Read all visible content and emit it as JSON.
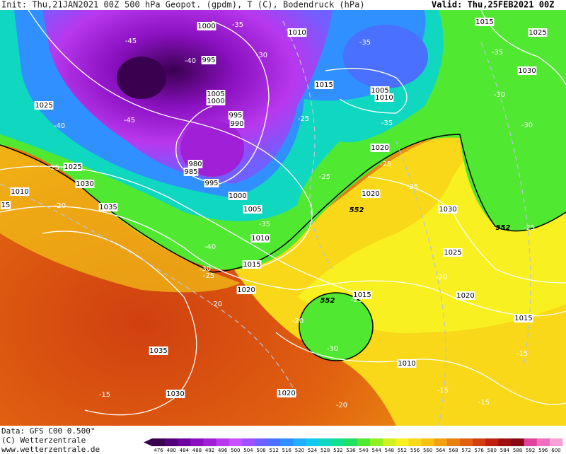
{
  "header": {
    "init": "Init: Thu,21JAN2021 00Z",
    "title": "500 hPa Geopot. (gpdm), T (C), Bodendruck (hPa)",
    "valid": "Valid: Thu,25FEB2021 00Z"
  },
  "footer": {
    "data": "Data: GFS C00 0.500°",
    "copyright": "(C) Wetterzentrale",
    "url": "www.wetterzentrale.de"
  },
  "colorbar": {
    "values": [
      476,
      480,
      484,
      488,
      492,
      496,
      500,
      504,
      508,
      512,
      516,
      520,
      524,
      528,
      532,
      536,
      540,
      544,
      548,
      552,
      556,
      560,
      564,
      568,
      572,
      576,
      580,
      584,
      588,
      592,
      596,
      600
    ],
    "colors": [
      "#3a0050",
      "#55007a",
      "#6e00a0",
      "#8a10c0",
      "#a020d8",
      "#b838ee",
      "#c850ff",
      "#a050ff",
      "#7060ff",
      "#4a70ff",
      "#3090ff",
      "#20b0ff",
      "#10c8f0",
      "#10d8c0",
      "#10e090",
      "#20e060",
      "#50e830",
      "#90f020",
      "#d0f020",
      "#f8f020",
      "#f8d818",
      "#f8c010",
      "#f0a010",
      "#e88010",
      "#e06010",
      "#d04010",
      "#c02010",
      "#a01010",
      "#880818",
      "#e040a0",
      "#f070c0",
      "#f8a0d8"
    ]
  },
  "isobar_labels": [
    "1000",
    "1010",
    "1015",
    "1025",
    "995",
    "1030",
    "1015",
    "1005",
    "1010",
    "1005",
    "1000",
    "1025",
    "995",
    "990",
    "1020",
    "980",
    "985",
    "995",
    "1025",
    "1030",
    "1010",
    "1020",
    "1000",
    "1035",
    "1005",
    "1030",
    "1010",
    "1025",
    "1015",
    "1020",
    "1020",
    "1015",
    "1015",
    "1035",
    "1010",
    "1030",
    "1020",
    "15"
  ],
  "temperature_labels": [
    "-45",
    "-35",
    "-40",
    "-30",
    "-35",
    "-35",
    "-30",
    "-45",
    "-40",
    "-25",
    "-35",
    "-30",
    "-25",
    "-25",
    "-25",
    "-20",
    "-25",
    "-35",
    "-40",
    "-25",
    "-30",
    "-25",
    "-20",
    "-25",
    "-20",
    "-20",
    "-30",
    "-15",
    "-15",
    "-15",
    "-15",
    "-20"
  ],
  "geopotential_labels": [
    "552",
    "552",
    "552"
  ]
}
